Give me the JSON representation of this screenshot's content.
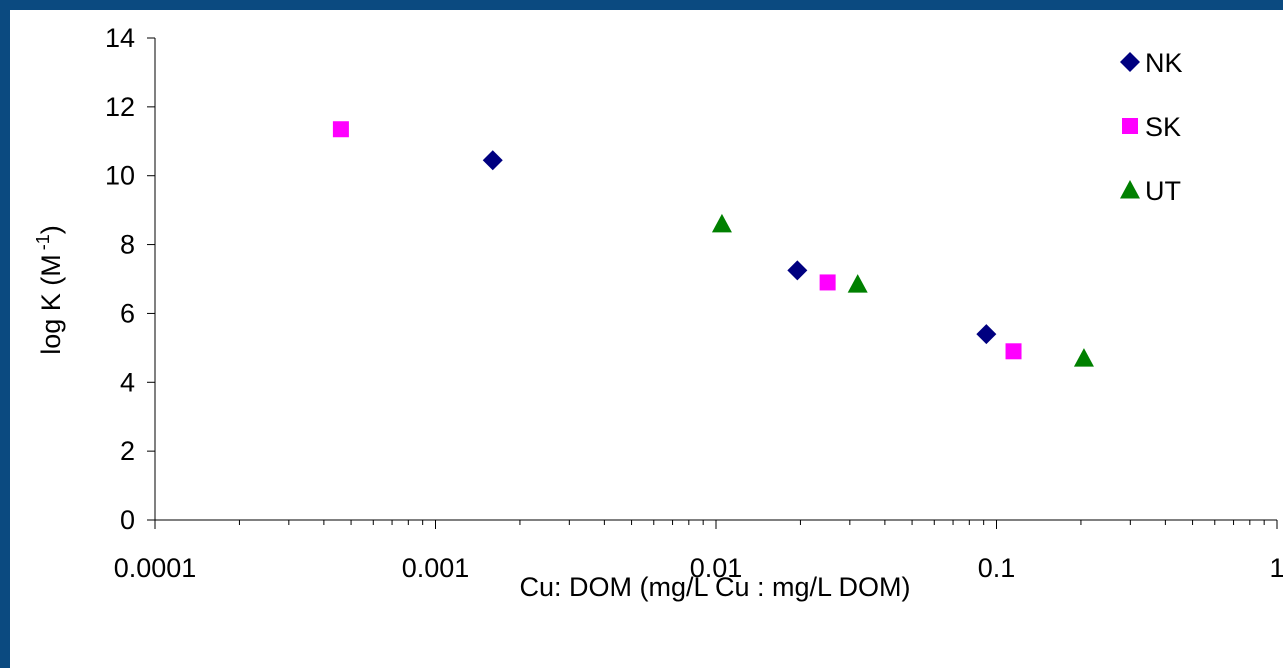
{
  "chart_data": {
    "type": "scatter",
    "xlabel": "Cu: DOM (mg/L Cu : mg/L DOM)",
    "ylabel_main": "log K (M",
    "ylabel_sup": "-1",
    "ylabel_close": ")",
    "x_scale": "log",
    "xlim": [
      0.0001,
      1
    ],
    "ylim": [
      0,
      14
    ],
    "x_ticks": [
      0.0001,
      0.001,
      0.01,
      0.1,
      1
    ],
    "x_tick_labels": [
      "0.0001",
      "0.001",
      "0.01",
      "0.1",
      "1"
    ],
    "y_ticks": [
      0,
      2,
      4,
      6,
      8,
      10,
      12,
      14
    ],
    "y_tick_labels": [
      "0",
      "2",
      "4",
      "6",
      "8",
      "10",
      "12",
      "14"
    ],
    "grid": false,
    "legend_position": "top-right",
    "series": [
      {
        "name": "NK",
        "marker": "diamond",
        "color": "#000080",
        "x": [
          0.0016,
          0.0195,
          0.092
        ],
        "y": [
          10.45,
          7.25,
          5.4
        ]
      },
      {
        "name": "SK",
        "marker": "square",
        "color": "#ff00ff",
        "x": [
          0.00046,
          0.025,
          0.115
        ],
        "y": [
          11.35,
          6.9,
          4.9
        ]
      },
      {
        "name": "UT",
        "marker": "triangle",
        "color": "#008000",
        "x": [
          0.0105,
          0.032,
          0.205
        ],
        "y": [
          8.6,
          6.85,
          4.7
        ]
      }
    ]
  }
}
